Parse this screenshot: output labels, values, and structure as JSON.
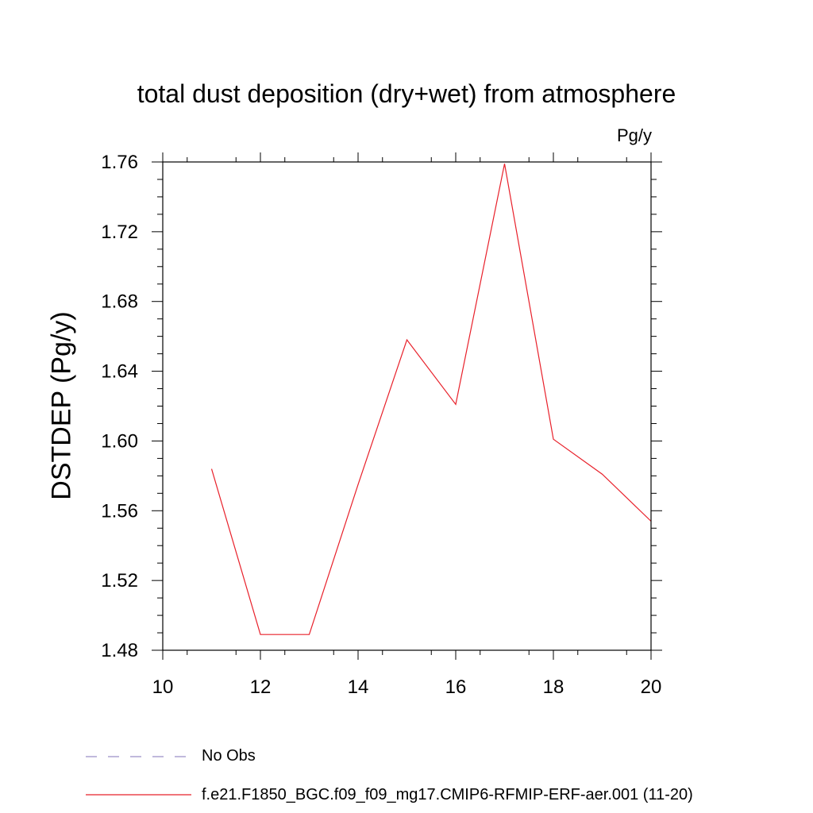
{
  "chart_data": {
    "type": "line",
    "title": "total dust deposition (dry+wet) from atmosphere",
    "units": "Pg/y",
    "xlabel": "",
    "ylabel": "DSTDEP  (Pg/y)",
    "xlim": [
      10,
      20
    ],
    "ylim": [
      1.48,
      1.76
    ],
    "x_ticks": [
      "10",
      "12",
      "14",
      "16",
      "18",
      "20"
    ],
    "y_ticks": [
      "1.48",
      "1.52",
      "1.56",
      "1.60",
      "1.64",
      "1.68",
      "1.72",
      "1.76"
    ],
    "series": [
      {
        "name": "f.e21.F1850_BGC.f09_f09_mg17.CMIP6-RFMIP-ERF-aer.001 (11-20)",
        "color": "#e8202a",
        "x": [
          11,
          12,
          13,
          14,
          15,
          16,
          17,
          18,
          19,
          20
        ],
        "y": [
          1.584,
          1.489,
          1.489,
          1.575,
          1.658,
          1.621,
          1.759,
          1.601,
          1.581,
          1.554
        ]
      }
    ],
    "legend": [
      {
        "label": "No Obs",
        "color": "#9b8fc6",
        "style": "dashed"
      },
      {
        "label": "f.e21.F1850_BGC.f09_f09_mg17.CMIP6-RFMIP-ERF-aer.001 (11-20)",
        "color": "#e8202a",
        "style": "solid"
      }
    ],
    "legend_position": "bottom-left",
    "grid": false
  }
}
